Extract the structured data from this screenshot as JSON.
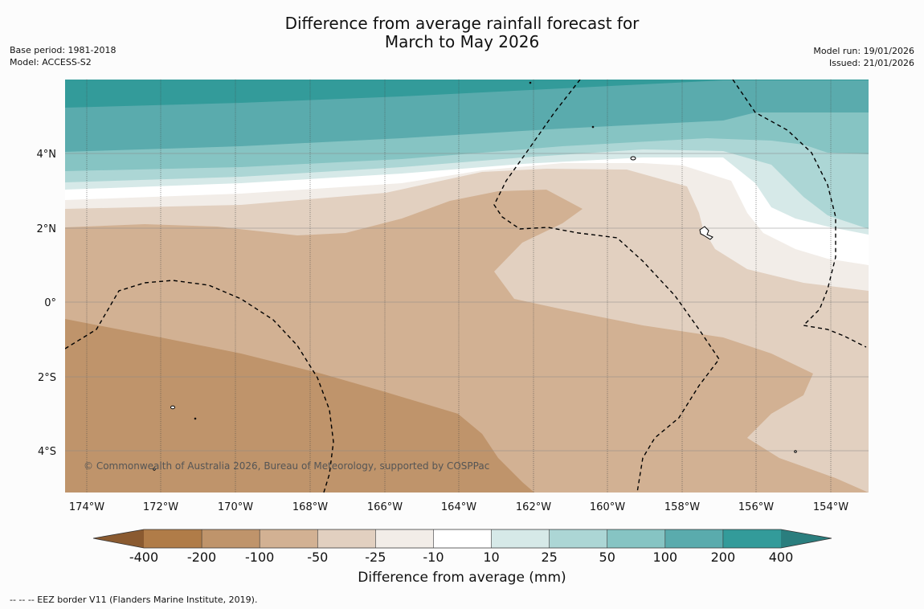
{
  "title": {
    "line1": "Difference from average rainfall forecast for",
    "line2": "March to May 2026"
  },
  "meta_left": {
    "base_period": "Base period: 1981-2018",
    "model": "Model: ACCESS-S2"
  },
  "meta_right": {
    "model_run": "Model run: 19/01/2026",
    "issued": "Issued: 21/01/2026"
  },
  "map": {
    "lat_labels": [
      "4°N",
      "2°N",
      "0°",
      "2°S",
      "4°S"
    ],
    "lon_labels": [
      "174°W",
      "172°W",
      "170°W",
      "168°W",
      "166°W",
      "164°W",
      "162°W",
      "160°W",
      "158°W",
      "156°W",
      "154°W"
    ],
    "copyright": "© Commonwealth of Australia 2026, Bureau of Meteorology, supported by COSPPac"
  },
  "colorbar": {
    "labels": [
      "-400",
      "-200",
      "-100",
      "-50",
      "-25",
      "-10",
      "10",
      "25",
      "50",
      "100",
      "200",
      "400"
    ],
    "colors": [
      "#b07c48",
      "#bf946b",
      "#d2b193",
      "#e2d0c0",
      "#f2ede8",
      "#ffffff",
      "#d6e9e8",
      "#acd6d5",
      "#86c4c3",
      "#5aabad",
      "#339b9a"
    ],
    "low_extend_color": "#8a5a30",
    "high_extend_color": "#2a7e7e",
    "title": "Difference from average (mm)"
  },
  "footer": "--  --  -- EEZ border V11 (Flanders Marine Institute, 2019).",
  "chart_data": {
    "type": "map",
    "title": "Difference from average rainfall forecast for March to May 2026",
    "lat_range": [
      "5°S",
      "6°N"
    ],
    "lon_range": [
      "174.5°W",
      "153°W"
    ],
    "units": "mm",
    "levels": [
      -400,
      -200,
      -100,
      -50,
      -25,
      -10,
      10,
      25,
      50,
      100,
      200,
      400
    ]
  }
}
